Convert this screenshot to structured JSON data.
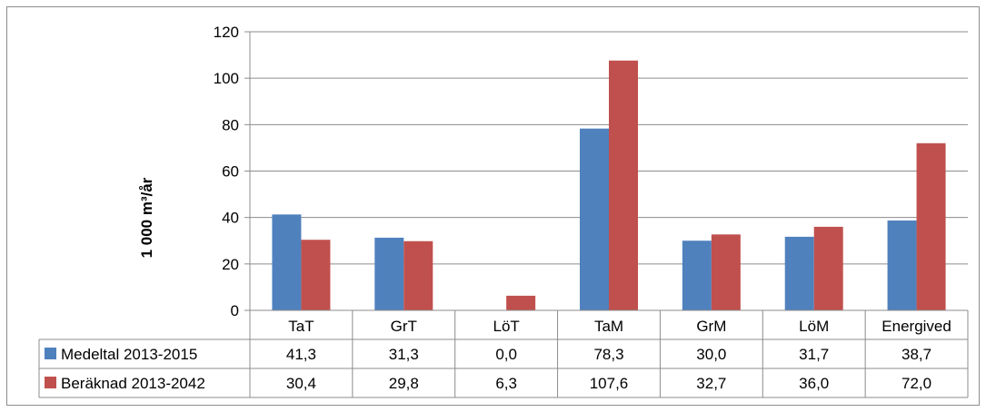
{
  "chart_data": {
    "type": "bar",
    "ylabel": "1 000 m³/år",
    "ylim": [
      0,
      120
    ],
    "yticks": [
      0,
      20,
      40,
      60,
      80,
      100,
      120
    ],
    "grid": true,
    "legend": "table-left",
    "categories": [
      "TaT",
      "GrT",
      "LöT",
      "TaM",
      "GrM",
      "LöM",
      "Energived"
    ],
    "series": [
      {
        "name": "Medeltal 2013-2015",
        "color": "#4f81bd",
        "values": [
          41.3,
          31.3,
          0.0,
          78.3,
          30.0,
          31.7,
          38.7
        ],
        "labels": [
          "41,3",
          "31,3",
          "0,0",
          "78,3",
          "30,0",
          "31,7",
          "38,7"
        ]
      },
      {
        "name": "Beräknad 2013-2042",
        "color": "#c0504d",
        "values": [
          30.4,
          29.8,
          6.3,
          107.6,
          32.7,
          36.0,
          72.0
        ],
        "labels": [
          "30,4",
          "29,8",
          "6,3",
          "107,6",
          "32,7",
          "36,0",
          "72,0"
        ]
      }
    ]
  }
}
